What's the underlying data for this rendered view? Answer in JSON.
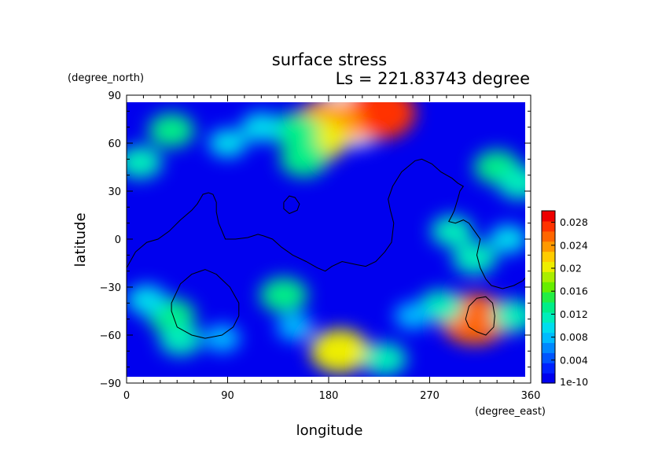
{
  "chart_data": {
    "type": "heatmap",
    "title": "surface stress",
    "subtitle": "Ls = 221.83743 degree",
    "xlabel": "longitude",
    "ylabel": "latitude",
    "x_units": "(degree_east)",
    "y_units": "(degree_north)",
    "xlim": [
      0,
      360
    ],
    "ylim": [
      -90,
      90
    ],
    "x_ticks": [
      0,
      90,
      180,
      270,
      360
    ],
    "y_ticks": [
      90,
      60,
      30,
      0,
      -30,
      -60,
      -90
    ],
    "grid": false,
    "colorbar": {
      "min": 1e-10,
      "max": 0.03,
      "bottom_label": "1e-10",
      "tick_values": [
        0.004,
        0.008,
        0.012,
        0.016,
        0.02,
        0.024,
        0.028
      ],
      "tick_labels": [
        "0.004",
        "0.008",
        "0.012",
        "0.016",
        "0.02",
        "0.024",
        "0.028"
      ],
      "colors": [
        "#0000ee",
        "#0022ff",
        "#0055ff",
        "#0088ff",
        "#00bbff",
        "#00ddee",
        "#00eebb",
        "#00ee88",
        "#22ee44",
        "#66ee00",
        "#aaee00",
        "#eeee00",
        "#ffcc00",
        "#ff9900",
        "#ff6600",
        "#ff3300",
        "#ee0000"
      ],
      "over_color": "#ffffff"
    },
    "features": [
      {
        "lon": 200,
        "lat": 76,
        "value": 0.031
      },
      {
        "lon": 225,
        "lat": 79,
        "value": 0.027
      },
      {
        "lon": 180,
        "lat": 72,
        "value": 0.024
      },
      {
        "lon": 170,
        "lat": 62,
        "value": 0.02
      },
      {
        "lon": 158,
        "lat": 50,
        "value": 0.014
      },
      {
        "lon": 150,
        "lat": 68,
        "value": 0.014
      },
      {
        "lon": 120,
        "lat": 70,
        "value": 0.01
      },
      {
        "lon": 40,
        "lat": 68,
        "value": 0.013
      },
      {
        "lon": 12,
        "lat": 48,
        "value": 0.012
      },
      {
        "lon": 90,
        "lat": 60,
        "value": 0.009
      },
      {
        "lon": 330,
        "lat": 45,
        "value": 0.013
      },
      {
        "lon": 350,
        "lat": 35,
        "value": 0.012
      },
      {
        "lon": 290,
        "lat": 5,
        "value": 0.011
      },
      {
        "lon": 310,
        "lat": -12,
        "value": 0.012
      },
      {
        "lon": 340,
        "lat": 0,
        "value": 0.009
      },
      {
        "lon": 310,
        "lat": -50,
        "value": 0.025
      },
      {
        "lon": 280,
        "lat": -42,
        "value": 0.012
      },
      {
        "lon": 345,
        "lat": -48,
        "value": 0.012
      },
      {
        "lon": 40,
        "lat": -48,
        "value": 0.014
      },
      {
        "lon": 18,
        "lat": -38,
        "value": 0.01
      },
      {
        "lon": 48,
        "lat": -63,
        "value": 0.011
      },
      {
        "lon": 85,
        "lat": -62,
        "value": 0.008
      },
      {
        "lon": 140,
        "lat": -35,
        "value": 0.014
      },
      {
        "lon": 190,
        "lat": -70,
        "value": 0.02
      },
      {
        "lon": 230,
        "lat": -75,
        "value": 0.012
      },
      {
        "lon": 150,
        "lat": -55,
        "value": 0.008
      },
      {
        "lon": 255,
        "lat": -48,
        "value": 0.008
      }
    ],
    "contour_lines": [
      [
        [
          0,
          -18
        ],
        [
          8,
          -8
        ],
        [
          18,
          -2
        ],
        [
          28,
          0
        ],
        [
          38,
          5
        ],
        [
          48,
          12
        ],
        [
          58,
          18
        ],
        [
          63,
          22
        ],
        [
          68,
          28
        ],
        [
          73,
          29
        ],
        [
          77,
          28
        ],
        [
          80,
          23
        ],
        [
          80,
          17
        ],
        [
          82,
          10
        ],
        [
          85,
          5
        ],
        [
          88,
          0
        ],
        [
          97,
          0
        ],
        [
          108,
          1
        ],
        [
          117,
          3
        ],
        [
          122,
          2
        ],
        [
          130,
          0
        ],
        [
          138,
          -5
        ],
        [
          148,
          -10
        ],
        [
          160,
          -14
        ],
        [
          170,
          -18
        ],
        [
          177,
          -20
        ],
        [
          183,
          -17
        ],
        [
          192,
          -14
        ],
        [
          205,
          -16
        ],
        [
          213,
          -17
        ],
        [
          222,
          -14
        ],
        [
          230,
          -8
        ],
        [
          236,
          -2
        ],
        [
          238,
          10
        ],
        [
          235,
          18
        ],
        [
          233,
          25
        ],
        [
          237,
          33
        ],
        [
          245,
          42
        ],
        [
          257,
          49
        ],
        [
          263,
          50
        ],
        [
          272,
          47
        ],
        [
          280,
          42
        ],
        [
          290,
          38
        ],
        [
          295,
          35
        ],
        [
          300,
          33
        ],
        [
          297,
          30
        ],
        [
          295,
          25
        ],
        [
          292,
          18
        ],
        [
          290,
          15
        ],
        [
          287,
          11
        ],
        [
          293,
          10
        ],
        [
          300,
          12
        ],
        [
          305,
          10
        ],
        [
          310,
          5
        ],
        [
          315,
          0
        ],
        [
          312,
          -10
        ],
        [
          315,
          -18
        ],
        [
          320,
          -25
        ],
        [
          325,
          -29
        ],
        [
          335,
          -31
        ],
        [
          345,
          -29
        ],
        [
          353,
          -26
        ],
        [
          358,
          -22
        ],
        [
          360,
          -20
        ]
      ],
      [
        [
          140,
          23
        ],
        [
          145,
          27
        ],
        [
          150,
          26
        ],
        [
          154,
          22
        ],
        [
          152,
          18
        ],
        [
          145,
          16
        ],
        [
          140,
          19
        ],
        [
          140,
          23
        ]
      ],
      [
        [
          40,
          -40
        ],
        [
          48,
          -28
        ],
        [
          58,
          -22
        ],
        [
          70,
          -19
        ],
        [
          80,
          -22
        ],
        [
          92,
          -30
        ],
        [
          100,
          -40
        ],
        [
          100,
          -48
        ],
        [
          95,
          -55
        ],
        [
          85,
          -60
        ],
        [
          70,
          -62
        ],
        [
          58,
          -60
        ],
        [
          45,
          -55
        ],
        [
          40,
          -45
        ],
        [
          40,
          -40
        ]
      ],
      [
        [
          302,
          -50
        ],
        [
          305,
          -42
        ],
        [
          312,
          -37
        ],
        [
          320,
          -36
        ],
        [
          326,
          -40
        ],
        [
          328,
          -48
        ],
        [
          327,
          -55
        ],
        [
          320,
          -60
        ],
        [
          312,
          -58
        ],
        [
          305,
          -55
        ],
        [
          302,
          -50
        ]
      ]
    ]
  }
}
